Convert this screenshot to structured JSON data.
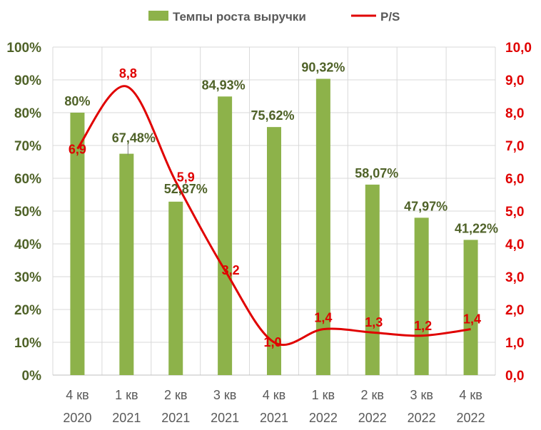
{
  "chart_data": {
    "type": "bar",
    "categories": [
      "4 кв 2020",
      "1 кв 2021",
      "2 кв 2021",
      "3 кв 2021",
      "4 кв 2021",
      "1 кв 2022",
      "2 кв 2022",
      "3 кв 2022",
      "4 кв 2022"
    ],
    "category_lines": [
      [
        "4 кв",
        "2020"
      ],
      [
        "1 кв",
        "2021"
      ],
      [
        "2 кв",
        "2021"
      ],
      [
        "3 кв",
        "2021"
      ],
      [
        "4 кв",
        "2021"
      ],
      [
        "1 кв",
        "2022"
      ],
      [
        "2 кв",
        "2022"
      ],
      [
        "3 кв",
        "2022"
      ],
      [
        "4 кв",
        "2022"
      ]
    ],
    "series": [
      {
        "name": "Темпы роста выручки",
        "type": "bar",
        "axis": "left",
        "color": "#8db24a",
        "values": [
          80,
          67.48,
          52.87,
          84.93,
          75.62,
          90.32,
          58.07,
          47.97,
          41.22
        ],
        "labels": [
          "80%",
          "67,48%",
          "52,87%",
          "84,93%",
          "75,62%",
          "90,32%",
          "58,07%",
          "47,97%",
          "41,22%"
        ]
      },
      {
        "name": "P/S",
        "type": "line",
        "axis": "right",
        "color": "#e00000",
        "values": [
          6.9,
          8.8,
          5.9,
          3.2,
          1.0,
          1.4,
          1.3,
          1.2,
          1.4
        ],
        "labels": [
          "6,9",
          "8,8",
          "5,9",
          "3,2",
          "1,0",
          "1,4",
          "1,3",
          "1,2",
          "1,4"
        ]
      }
    ],
    "y_left": {
      "ylim": [
        0,
        100
      ],
      "ticks": [
        "0%",
        "10%",
        "20%",
        "30%",
        "40%",
        "50%",
        "60%",
        "70%",
        "80%",
        "90%",
        "100%"
      ],
      "color": "#4f6228"
    },
    "y_right": {
      "ylim": [
        0,
        10
      ],
      "ticks": [
        "0,0",
        "1,0",
        "2,0",
        "3,0",
        "4,0",
        "5,0",
        "6,0",
        "7,0",
        "8,0",
        "9,0",
        "10,0"
      ],
      "color": "#e00000"
    },
    "title": "",
    "xlabel": "",
    "ylabel": "",
    "grid": true,
    "legend_position": "top"
  }
}
